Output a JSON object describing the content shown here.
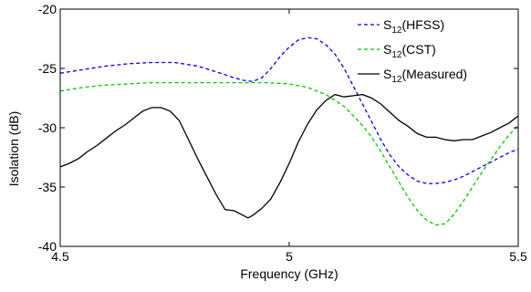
{
  "chart_data": {
    "type": "line",
    "title": "",
    "xlabel": "Frequency (GHz)",
    "ylabel": "Isolation (dB)",
    "xlim": [
      4.5,
      5.5
    ],
    "ylim": [
      -40,
      -20
    ],
    "x_ticks": [
      4.5,
      5,
      5.5
    ],
    "x_tick_labels": [
      "4.5",
      "5",
      "5.5"
    ],
    "y_ticks": [
      -20,
      -25,
      -30,
      -35,
      -40
    ],
    "y_tick_labels": [
      "-20",
      "-25",
      "-30",
      "-35",
      "-40"
    ],
    "grid": false,
    "legend_position": "top-right",
    "series": [
      {
        "name_main": "S",
        "name_sub": "12",
        "name_tail": "(HFSS)",
        "color": "#0000ff",
        "dash": "dashed",
        "x": [
          4.5,
          4.55,
          4.6,
          4.65,
          4.7,
          4.75,
          4.8,
          4.85,
          4.88,
          4.9,
          4.92,
          4.94,
          4.96,
          4.98,
          5.0,
          5.02,
          5.04,
          5.06,
          5.08,
          5.1,
          5.12,
          5.14,
          5.16,
          5.18,
          5.2,
          5.22,
          5.24,
          5.26,
          5.28,
          5.3,
          5.32,
          5.34,
          5.36,
          5.38,
          5.4,
          5.42,
          5.44,
          5.46,
          5.48,
          5.5
        ],
        "y": [
          -25.4,
          -25.1,
          -24.8,
          -24.6,
          -24.5,
          -24.5,
          -24.8,
          -25.4,
          -25.8,
          -26.0,
          -26.1,
          -25.8,
          -25.0,
          -24.0,
          -23.2,
          -22.6,
          -22.4,
          -22.5,
          -23.0,
          -23.8,
          -25.0,
          -26.5,
          -28.0,
          -29.5,
          -31.0,
          -32.3,
          -33.3,
          -34.0,
          -34.5,
          -34.7,
          -34.7,
          -34.6,
          -34.4,
          -34.1,
          -33.7,
          -33.3,
          -32.9,
          -32.5,
          -32.1,
          -31.8
        ]
      },
      {
        "name_main": "S",
        "name_sub": "12",
        "name_tail": "(CST)",
        "color": "#00cc00",
        "dash": "dashed",
        "x": [
          4.5,
          4.55,
          4.6,
          4.65,
          4.7,
          4.75,
          4.8,
          4.85,
          4.9,
          4.95,
          5.0,
          5.04,
          5.08,
          5.12,
          5.16,
          5.18,
          5.2,
          5.22,
          5.24,
          5.26,
          5.28,
          5.3,
          5.32,
          5.34,
          5.36,
          5.38,
          5.4,
          5.42,
          5.44,
          5.46,
          5.48,
          5.5
        ],
        "y": [
          -26.9,
          -26.6,
          -26.4,
          -26.3,
          -26.2,
          -26.2,
          -26.2,
          -26.2,
          -26.2,
          -26.2,
          -26.3,
          -26.6,
          -27.2,
          -28.2,
          -29.8,
          -30.8,
          -32.0,
          -33.3,
          -34.6,
          -35.9,
          -37.0,
          -37.8,
          -38.2,
          -38.1,
          -37.3,
          -36.2,
          -35.0,
          -33.8,
          -32.7,
          -31.6,
          -30.6,
          -29.8
        ]
      },
      {
        "name_main": "S",
        "name_sub": "12",
        "name_tail": "(Measured)",
        "color": "#000000",
        "dash": "solid",
        "x": [
          4.5,
          4.52,
          4.54,
          4.56,
          4.58,
          4.6,
          4.62,
          4.64,
          4.66,
          4.68,
          4.7,
          4.72,
          4.74,
          4.76,
          4.78,
          4.8,
          4.82,
          4.84,
          4.86,
          4.88,
          4.9,
          4.91,
          4.92,
          4.94,
          4.96,
          4.98,
          5.0,
          5.02,
          5.04,
          5.06,
          5.08,
          5.1,
          5.12,
          5.14,
          5.16,
          5.18,
          5.2,
          5.22,
          5.24,
          5.26,
          5.28,
          5.3,
          5.32,
          5.34,
          5.36,
          5.38,
          5.4,
          5.42,
          5.44,
          5.46,
          5.48,
          5.5
        ],
        "y": [
          -33.3,
          -33.0,
          -32.6,
          -32.0,
          -31.5,
          -30.9,
          -30.3,
          -29.8,
          -29.2,
          -28.6,
          -28.3,
          -28.3,
          -28.6,
          -29.4,
          -31.0,
          -32.6,
          -34.1,
          -35.6,
          -36.9,
          -37.0,
          -37.4,
          -37.6,
          -37.4,
          -36.8,
          -36.0,
          -34.6,
          -33.0,
          -31.2,
          -29.7,
          -28.5,
          -27.7,
          -27.2,
          -27.4,
          -27.3,
          -27.2,
          -27.5,
          -28.0,
          -28.7,
          -29.4,
          -29.9,
          -30.5,
          -30.8,
          -30.8,
          -31.0,
          -31.1,
          -31.0,
          -31.0,
          -30.7,
          -30.4,
          -30.0,
          -29.6,
          -29.0
        ]
      }
    ]
  }
}
